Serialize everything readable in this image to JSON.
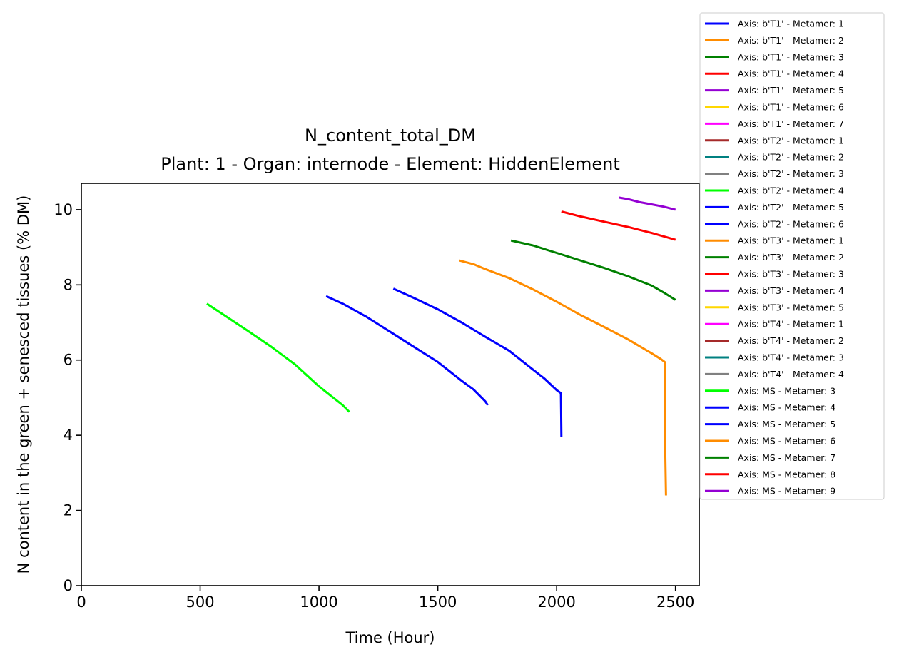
{
  "chart_data": {
    "type": "line",
    "title": "N_content_total_DM",
    "subtitle": "Plant: 1 - Organ: internode - Element: HiddenElement",
    "xlabel": "Time (Hour)",
    "ylabel": "N content in the green + senesced tissues (% DM)",
    "xlim": [
      0,
      2600
    ],
    "ylim": [
      0,
      10.7
    ],
    "xticks": [
      0,
      500,
      1000,
      1500,
      2000,
      2500
    ],
    "yticks": [
      0,
      2,
      4,
      6,
      8,
      10
    ],
    "grid": false,
    "legend_position": "outside-right",
    "series": [
      {
        "name": "Axis: b'T1' - Metamer: 1",
        "color": "#0000ff",
        "x": [],
        "y": []
      },
      {
        "name": "Axis: b'T1' - Metamer: 2",
        "color": "#ff8c00",
        "x": [],
        "y": []
      },
      {
        "name": "Axis: b'T1' - Metamer: 3",
        "color": "#008000",
        "x": [],
        "y": []
      },
      {
        "name": "Axis: b'T1' - Metamer: 4",
        "color": "#ff0000",
        "x": [],
        "y": []
      },
      {
        "name": "Axis: b'T1' - Metamer: 5",
        "color": "#9400d3",
        "x": [],
        "y": []
      },
      {
        "name": "Axis: b'T1' - Metamer: 6",
        "color": "#ffd700",
        "x": [],
        "y": []
      },
      {
        "name": "Axis: b'T1' - Metamer: 7",
        "color": "#ff00ff",
        "x": [],
        "y": []
      },
      {
        "name": "Axis: b'T2' - Metamer: 1",
        "color": "#a52a2a",
        "x": [],
        "y": []
      },
      {
        "name": "Axis: b'T2' - Metamer: 2",
        "color": "#008080",
        "x": [],
        "y": []
      },
      {
        "name": "Axis: b'T2' - Metamer: 3",
        "color": "#808080",
        "x": [],
        "y": []
      },
      {
        "name": "Axis: b'T2' - Metamer: 4",
        "color": "#00ff00",
        "x": [],
        "y": []
      },
      {
        "name": "Axis: b'T2' - Metamer: 5",
        "color": "#0000ff",
        "x": [],
        "y": []
      },
      {
        "name": "Axis: b'T2' - Metamer: 6",
        "color": "#0000ff",
        "x": [],
        "y": []
      },
      {
        "name": "Axis: b'T3' - Metamer: 1",
        "color": "#ff8c00",
        "x": [],
        "y": []
      },
      {
        "name": "Axis: b'T3' - Metamer: 2",
        "color": "#008000",
        "x": [],
        "y": []
      },
      {
        "name": "Axis: b'T3' - Metamer: 3",
        "color": "#ff0000",
        "x": [],
        "y": []
      },
      {
        "name": "Axis: b'T3' - Metamer: 4",
        "color": "#9400d3",
        "x": [],
        "y": []
      },
      {
        "name": "Axis: b'T3' - Metamer: 5",
        "color": "#ffd700",
        "x": [],
        "y": []
      },
      {
        "name": "Axis: b'T4' - Metamer: 1",
        "color": "#ff00ff",
        "x": [],
        "y": []
      },
      {
        "name": "Axis: b'T4' - Metamer: 2",
        "color": "#a52a2a",
        "x": [],
        "y": []
      },
      {
        "name": "Axis: b'T4' - Metamer: 3",
        "color": "#008080",
        "x": [],
        "y": []
      },
      {
        "name": "Axis: b'T4' - Metamer: 4",
        "color": "#808080",
        "x": [],
        "y": []
      },
      {
        "name": "Axis: MS - Metamer: 3",
        "color": "#00ff00",
        "x": [
          528,
          600,
          700,
          800,
          900,
          1000,
          1050,
          1100,
          1128
        ],
        "y": [
          7.5,
          7.2,
          6.78,
          6.35,
          5.88,
          5.3,
          5.05,
          4.8,
          4.62
        ]
      },
      {
        "name": "Axis: MS - Metamer: 4",
        "color": "#0000ff",
        "x": [
          1030,
          1100,
          1200,
          1300,
          1400,
          1500,
          1600,
          1650,
          1700,
          1710
        ],
        "y": [
          7.7,
          7.5,
          7.15,
          6.75,
          6.35,
          5.95,
          5.45,
          5.22,
          4.9,
          4.8
        ]
      },
      {
        "name": "Axis: MS - Metamer: 5",
        "color": "#0000ff",
        "x": [
          1313,
          1400,
          1500,
          1600,
          1700,
          1800,
          1900,
          1950,
          2000,
          2018,
          2019,
          2020
        ],
        "y": [
          7.9,
          7.65,
          7.35,
          7.0,
          6.62,
          6.25,
          5.75,
          5.5,
          5.2,
          5.12,
          4.5,
          3.95
        ]
      },
      {
        "name": "Axis: MS - Metamer: 6",
        "color": "#ff8c00",
        "x": [
          1590,
          1650,
          1700,
          1800,
          1900,
          2000,
          2100,
          2200,
          2300,
          2400,
          2440,
          2455,
          2456,
          2460
        ],
        "y": [
          8.65,
          8.55,
          8.42,
          8.18,
          7.88,
          7.55,
          7.2,
          6.88,
          6.55,
          6.18,
          6.02,
          5.95,
          4.0,
          2.4
        ]
      },
      {
        "name": "Axis: MS - Metamer: 7",
        "color": "#008000",
        "x": [
          1808,
          1900,
          2000,
          2100,
          2200,
          2300,
          2400,
          2450,
          2500
        ],
        "y": [
          9.18,
          9.05,
          8.85,
          8.65,
          8.45,
          8.23,
          7.98,
          7.8,
          7.6
        ]
      },
      {
        "name": "Axis: MS - Metamer: 8",
        "color": "#ff0000",
        "x": [
          2020,
          2100,
          2200,
          2300,
          2400,
          2500
        ],
        "y": [
          9.95,
          9.82,
          9.68,
          9.54,
          9.38,
          9.2
        ]
      },
      {
        "name": "Axis: MS - Metamer: 9",
        "color": "#9400d3",
        "x": [
          2263,
          2300,
          2350,
          2400,
          2450,
          2500
        ],
        "y": [
          10.32,
          10.28,
          10.2,
          10.14,
          10.08,
          10.0
        ]
      }
    ]
  }
}
